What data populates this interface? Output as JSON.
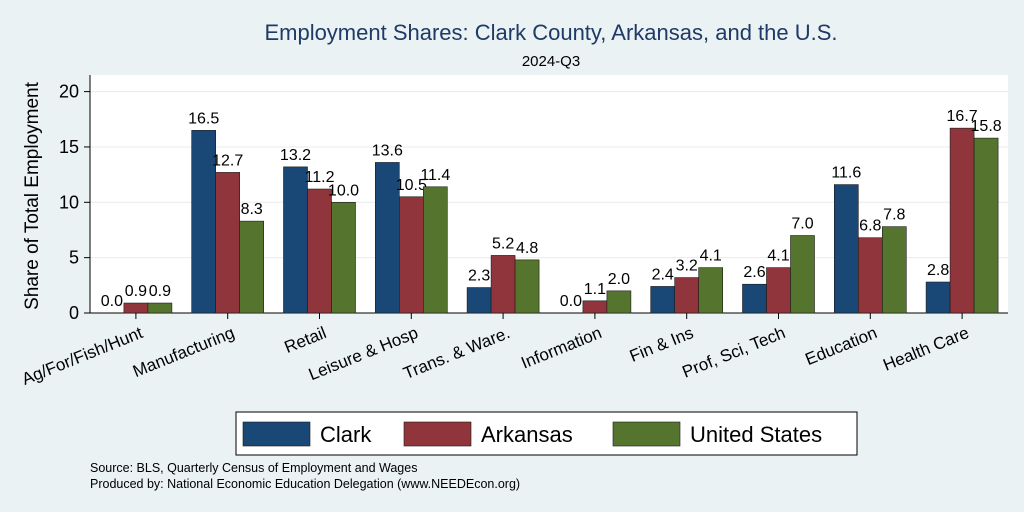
{
  "chart_data": {
    "type": "bar",
    "title": "Employment Shares: Clark County, Arkansas, and the U.S.",
    "subtitle": "2024-Q3",
    "ylabel": "Share of Total Employment",
    "ylim": [
      0,
      21.5
    ],
    "yticks": [
      0,
      5,
      10,
      15,
      20
    ],
    "grid": true,
    "legend_position": "bottom",
    "categories": [
      "Ag/For/Fish/Hunt",
      "Manufacturing",
      "Retail",
      "Leisure & Hosp",
      "Trans. & Ware.",
      "Information",
      "Fin & Ins",
      "Prof, Sci, Tech",
      "Education",
      "Health Care"
    ],
    "series": [
      {
        "name": "Clark",
        "color": "#1a4876",
        "values": [
          0.0,
          16.5,
          13.2,
          13.6,
          2.3,
          0.0,
          2.4,
          2.6,
          11.6,
          2.8
        ]
      },
      {
        "name": "Arkansas",
        "color": "#90353b",
        "values": [
          0.9,
          12.7,
          11.2,
          10.5,
          5.2,
          1.1,
          3.2,
          4.1,
          6.8,
          16.7
        ]
      },
      {
        "name": "United States",
        "color": "#55752f",
        "values": [
          0.9,
          8.3,
          10.0,
          11.4,
          4.8,
          2.0,
          4.1,
          7.0,
          7.8,
          15.8
        ]
      }
    ],
    "notes": [
      "Source: BLS, Quarterly Census of Employment and Wages",
      "Produced by: National Economic Education Delegation (www.NEEDEcon.org)"
    ]
  }
}
